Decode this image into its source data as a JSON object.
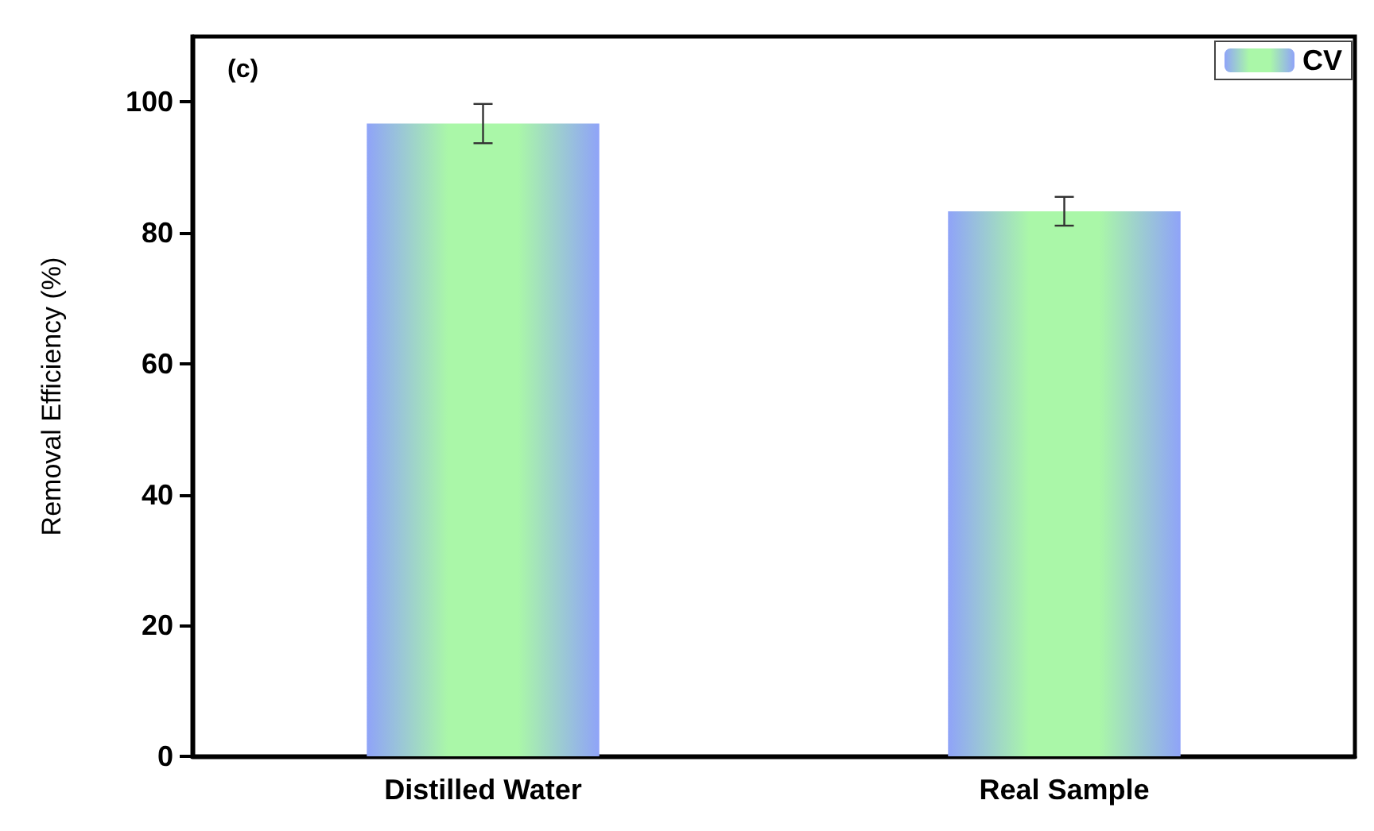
{
  "chart_data": {
    "type": "bar",
    "ylabel": "Removal Efficiency (%)",
    "categories": [
      "Distilled Water",
      "Real Sample"
    ],
    "series": [
      {
        "name": "CV",
        "color": "#8fa3f8",
        "values": [
          96.7,
          83.3
        ],
        "errors": [
          3,
          2.2
        ]
      }
    ],
    "ylim": [
      0,
      110
    ],
    "yticks": [
      0,
      20,
      40,
      60,
      80,
      100
    ],
    "grid": false,
    "legend": "top right",
    "annotations": [
      "(c)"
    ]
  }
}
